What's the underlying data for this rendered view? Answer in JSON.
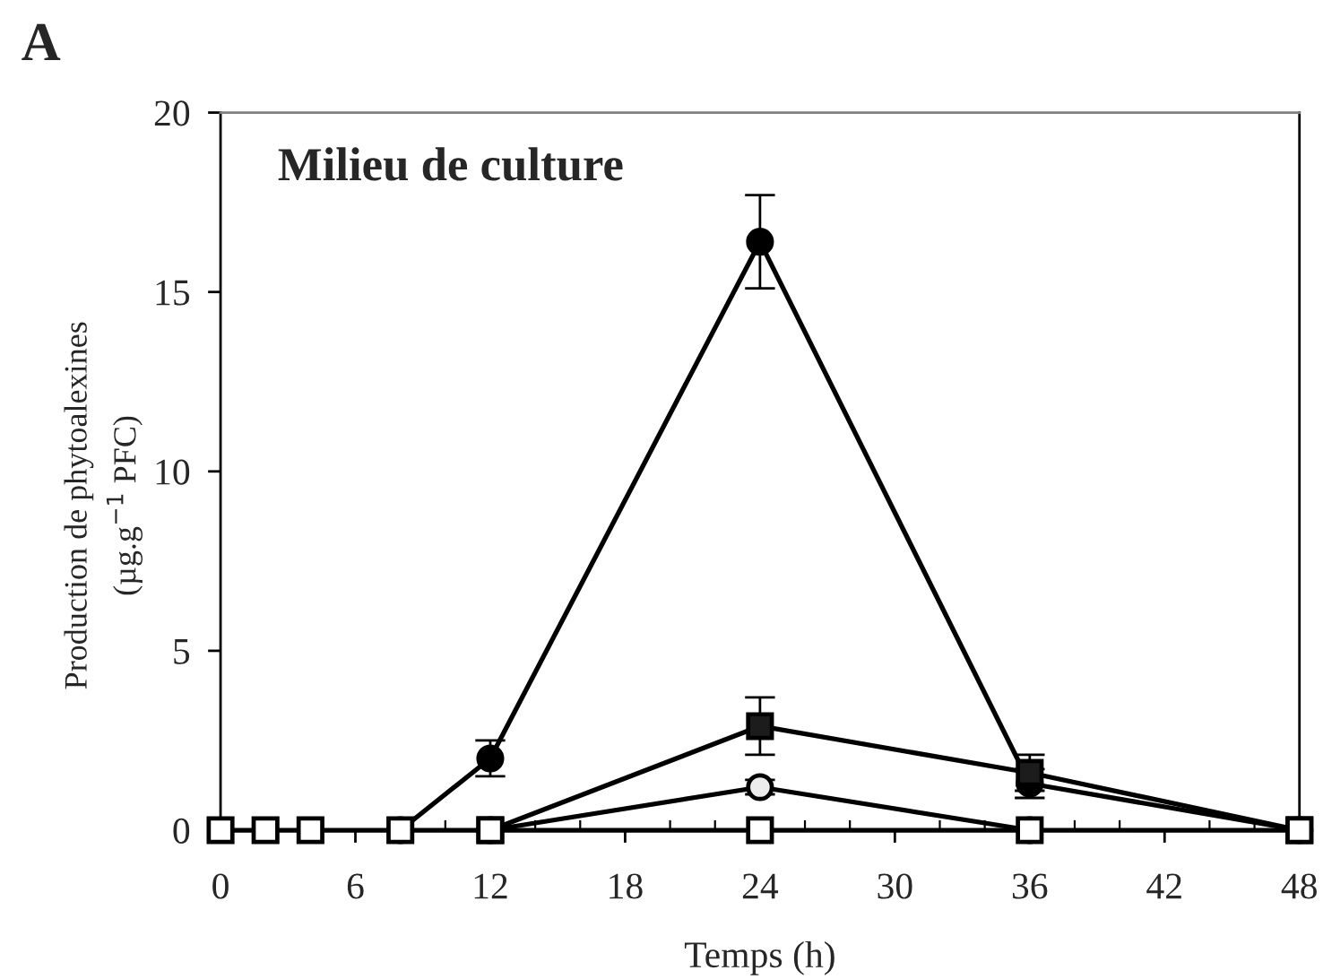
{
  "chart_data": {
    "type": "line",
    "title": "Milieu de culture",
    "xlabel": "Temps (h)",
    "ylabel": "Production de phytoalexines\n(µg.g$^{−1}$ PFC)",
    "annotations": [
      "A"
    ],
    "x": [
      0,
      2,
      4,
      8,
      12,
      24,
      36,
      48
    ],
    "series": [
      {
        "color": "#000000",
        "marker": "circle",
        "values": [
          null,
          null,
          null,
          0,
          2.0,
          16.4,
          1.3,
          0
        ],
        "errors": [
          null,
          null,
          null,
          null,
          0.5,
          1.3,
          0.4,
          null
        ]
      },
      {
        "color": "#000000",
        "marker": "square",
        "colors": [
          "#1c1c1c",
          "#1c1c1c",
          "#1c1c1c",
          "#1c1c1c",
          "#1c1c1c",
          "#1c1c1c",
          "#1c1c1c",
          "#1c1c1c"
        ],
        "values": [
          null,
          null,
          null,
          null,
          0,
          2.9,
          1.6,
          0
        ],
        "errors": [
          null,
          null,
          null,
          null,
          null,
          0.8,
          0.5,
          null
        ]
      },
      {
        "color": "#000000",
        "marker": "circle",
        "colors": [
          "#ececec",
          "#ececec",
          "#ececec",
          "#ececec",
          "#ececec",
          "#ececec",
          "#ececec",
          "#ececec"
        ],
        "values": [
          null,
          null,
          null,
          null,
          0,
          1.2,
          0,
          null
        ],
        "errors": [
          null,
          null,
          null,
          null,
          null,
          0.2,
          null,
          null
        ]
      },
      {
        "color": "#000000",
        "marker": "square",
        "colors": [
          "#ffffff",
          "#ffffff",
          "#ffffff",
          "#ffffff",
          "#ffffff",
          "#ffffff",
          "#ffffff",
          "#ffffff"
        ],
        "values": [
          0,
          0,
          0,
          0,
          0,
          0,
          0,
          0
        ]
      }
    ],
    "xlim": [
      0,
      48
    ],
    "xticks": [
      0,
      {
        "value": 2,
        "label": null
      },
      {
        "value": 4,
        "label": null
      },
      6,
      {
        "value": 8,
        "label": null
      },
      {
        "value": 10,
        "label": null
      },
      12,
      {
        "value": 14,
        "label": null
      },
      {
        "value": 16,
        "label": null
      },
      18,
      {
        "value": 20,
        "label": null
      },
      {
        "value": 22,
        "label": null
      },
      24,
      {
        "value": 26,
        "label": null
      },
      {
        "value": 28,
        "label": null
      },
      30,
      {
        "value": 32,
        "label": null
      },
      {
        "value": 34,
        "label": null
      },
      36,
      {
        "value": 38,
        "label": null
      },
      {
        "value": 40,
        "label": null
      },
      42,
      {
        "value": 44,
        "label": null
      },
      {
        "value": 46,
        "label": null
      },
      48
    ],
    "ylim": [
      0,
      20
    ],
    "yticks": [
      0,
      5,
      10,
      15,
      20
    ],
    "grid": false,
    "legend": false,
    "line_style": "solid"
  }
}
